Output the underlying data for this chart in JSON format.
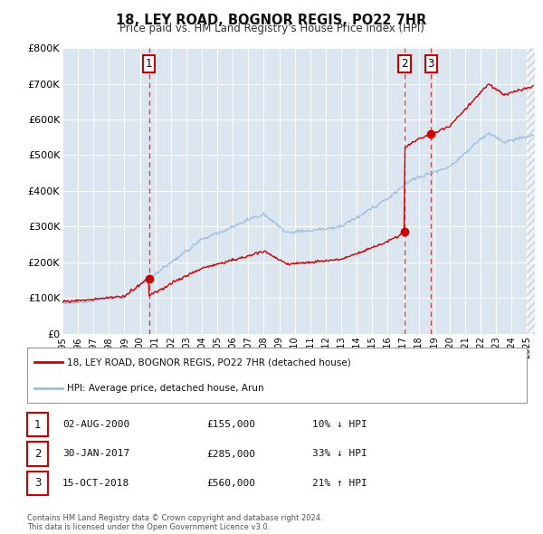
{
  "title": "18, LEY ROAD, BOGNOR REGIS, PO22 7HR",
  "subtitle": "Price paid vs. HM Land Registry's House Price Index (HPI)",
  "bg_color": "#dce6f1",
  "fig_bg": "#ffffff",
  "hpi_color": "#a0c0e0",
  "price_color": "#cc0000",
  "ylim": [
    0,
    800000
  ],
  "xlim_start": 1995.0,
  "xlim_end": 2025.5,
  "sale_dates": [
    2000.58,
    2017.08,
    2018.79
  ],
  "sale_prices": [
    155000,
    285000,
    560000
  ],
  "sale_labels": [
    "1",
    "2",
    "3"
  ],
  "legend_label_price": "18, LEY ROAD, BOGNOR REGIS, PO22 7HR (detached house)",
  "legend_label_hpi": "HPI: Average price, detached house, Arun",
  "table_rows": [
    [
      "1",
      "02-AUG-2000",
      "£155,000",
      "10% ↓ HPI"
    ],
    [
      "2",
      "30-JAN-2017",
      "£285,000",
      "33% ↓ HPI"
    ],
    [
      "3",
      "15-OCT-2018",
      "£560,000",
      "21% ↑ HPI"
    ]
  ],
  "footer": "Contains HM Land Registry data © Crown copyright and database right 2024.\nThis data is licensed under the Open Government Licence v3.0.",
  "ytick_labels": [
    "£0",
    "£100K",
    "£200K",
    "£300K",
    "£400K",
    "£500K",
    "£600K",
    "£700K",
    "£800K"
  ],
  "ytick_values": [
    0,
    100000,
    200000,
    300000,
    400000,
    500000,
    600000,
    700000,
    800000
  ],
  "grid_color": "#ffffff"
}
